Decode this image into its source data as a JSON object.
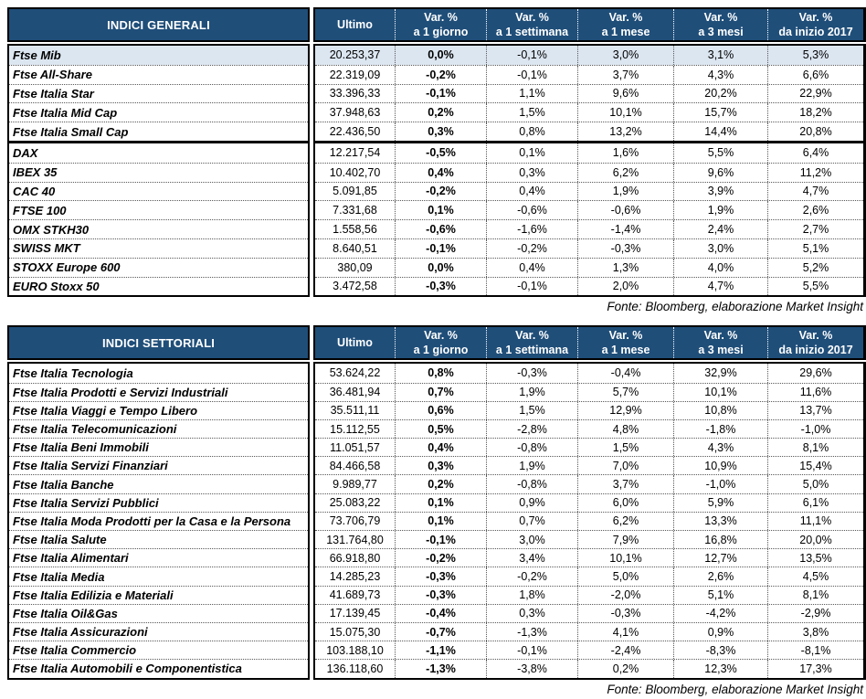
{
  "colors": {
    "header_bg": "#1F4E79",
    "header_text": "#FFFFFF",
    "highlight_bg": "#DCE6F1"
  },
  "tables": [
    {
      "title": "INDICI GENERALI",
      "columns": {
        "ultimo": "Ultimo",
        "var": "Var. %",
        "periods": [
          "a 1 giorno",
          "a 1 settimana",
          "a 1 mese",
          "a 3 mesi",
          "da inizio 2017"
        ]
      },
      "groups": [
        {
          "rows": [
            {
              "name": "Ftse Mib",
              "ultimo": "20.253,37",
              "vars": [
                "0,0%",
                "-0,1%",
                "3,0%",
                "3,1%",
                "5,3%"
              ],
              "highlight": true
            },
            {
              "name": "Ftse All-Share",
              "ultimo": "22.319,09",
              "vars": [
                "-0,2%",
                "-0,1%",
                "3,7%",
                "4,3%",
                "6,6%"
              ]
            },
            {
              "name": "Ftse Italia Star",
              "ultimo": "33.396,33",
              "vars": [
                "-0,1%",
                "1,1%",
                "9,6%",
                "20,2%",
                "22,9%"
              ]
            },
            {
              "name": "Ftse Italia Mid Cap",
              "ultimo": "37.948,63",
              "vars": [
                "0,2%",
                "1,5%",
                "10,1%",
                "15,7%",
                "18,2%"
              ]
            },
            {
              "name": "Ftse Italia Small Cap",
              "ultimo": "22.436,50",
              "vars": [
                "0,3%",
                "0,8%",
                "13,2%",
                "14,4%",
                "20,8%"
              ]
            }
          ]
        },
        {
          "rows": [
            {
              "name": "DAX",
              "ultimo": "12.217,54",
              "vars": [
                "-0,5%",
                "0,1%",
                "1,6%",
                "5,5%",
                "6,4%"
              ]
            },
            {
              "name": "IBEX 35",
              "ultimo": "10.402,70",
              "vars": [
                "0,4%",
                "0,3%",
                "6,2%",
                "9,6%",
                "11,2%"
              ]
            },
            {
              "name": "CAC 40",
              "ultimo": "5.091,85",
              "vars": [
                "-0,2%",
                "0,4%",
                "1,9%",
                "3,9%",
                "4,7%"
              ]
            },
            {
              "name": "FTSE 100",
              "ultimo": "7.331,68",
              "vars": [
                "0,1%",
                "-0,6%",
                "-0,6%",
                "1,9%",
                "2,6%"
              ]
            },
            {
              "name": "OMX STKH30",
              "ultimo": "1.558,56",
              "vars": [
                "-0,6%",
                "-1,6%",
                "-1,4%",
                "2,4%",
                "2,7%"
              ]
            },
            {
              "name": "SWISS MKT",
              "ultimo": "8.640,51",
              "vars": [
                "-0,1%",
                "-0,2%",
                "-0,3%",
                "3,0%",
                "5,1%"
              ]
            },
            {
              "name": "STOXX Europe 600",
              "ultimo": "380,09",
              "vars": [
                "0,0%",
                "0,4%",
                "1,3%",
                "4,0%",
                "5,2%"
              ]
            },
            {
              "name": "EURO Stoxx 50",
              "ultimo": "3.472,58",
              "vars": [
                "-0,3%",
                "-0,1%",
                "2,0%",
                "4,7%",
                "5,5%"
              ]
            }
          ]
        }
      ],
      "source": "Fonte: Bloomberg, elaborazione Market Insight"
    },
    {
      "title": "INDICI SETTORIALI",
      "columns": {
        "ultimo": "Ultimo",
        "var": "Var. %",
        "periods": [
          "a 1 giorno",
          "a 1 settimana",
          "a 1 mese",
          "a 3 mesi",
          "da inizio 2017"
        ]
      },
      "groups": [
        {
          "rows": [
            {
              "name": "Ftse Italia Tecnologia",
              "ultimo": "53.624,22",
              "vars": [
                "0,8%",
                "-0,3%",
                "-0,4%",
                "32,9%",
                "29,6%"
              ]
            },
            {
              "name": "Ftse Italia Prodotti e Servizi Industriali",
              "ultimo": "36.481,94",
              "vars": [
                "0,7%",
                "1,9%",
                "5,7%",
                "10,1%",
                "11,6%"
              ]
            },
            {
              "name": "Ftse Italia Viaggi e Tempo Libero",
              "ultimo": "35.511,11",
              "vars": [
                "0,6%",
                "1,5%",
                "12,9%",
                "10,8%",
                "13,7%"
              ]
            },
            {
              "name": "Ftse Italia Telecomunicazioni",
              "ultimo": "15.112,55",
              "vars": [
                "0,5%",
                "-2,8%",
                "4,8%",
                "-1,8%",
                "-1,0%"
              ]
            },
            {
              "name": "Ftse Italia Beni Immobili",
              "ultimo": "11.051,57",
              "vars": [
                "0,4%",
                "-0,8%",
                "1,5%",
                "4,3%",
                "8,1%"
              ]
            },
            {
              "name": "Ftse Italia Servizi Finanziari",
              "ultimo": "84.466,58",
              "vars": [
                "0,3%",
                "1,9%",
                "7,0%",
                "10,9%",
                "15,4%"
              ]
            },
            {
              "name": "Ftse Italia Banche",
              "ultimo": "9.989,77",
              "vars": [
                "0,2%",
                "-0,8%",
                "3,7%",
                "-1,0%",
                "5,0%"
              ]
            },
            {
              "name": "Ftse Italia Servizi Pubblici",
              "ultimo": "25.083,22",
              "vars": [
                "0,1%",
                "0,9%",
                "6,0%",
                "5,9%",
                "6,1%"
              ]
            },
            {
              "name": "Ftse Italia Moda Prodotti per la Casa e la Persona",
              "ultimo": "73.706,79",
              "vars": [
                "0,1%",
                "0,7%",
                "6,2%",
                "13,3%",
                "11,1%"
              ]
            },
            {
              "name": "Ftse Italia Salute",
              "ultimo": "131.764,80",
              "vars": [
                "-0,1%",
                "3,0%",
                "7,9%",
                "16,8%",
                "20,0%"
              ]
            },
            {
              "name": "Ftse Italia Alimentari",
              "ultimo": "66.918,80",
              "vars": [
                "-0,2%",
                "3,4%",
                "10,1%",
                "12,7%",
                "13,5%"
              ]
            },
            {
              "name": "Ftse Italia Media",
              "ultimo": "14.285,23",
              "vars": [
                "-0,3%",
                "-0,2%",
                "5,0%",
                "2,6%",
                "4,5%"
              ]
            },
            {
              "name": "Ftse Italia Edilizia e Materiali",
              "ultimo": "41.689,73",
              "vars": [
                "-0,3%",
                "1,8%",
                "-2,0%",
                "5,1%",
                "8,1%"
              ]
            },
            {
              "name": "Ftse Italia Oil&Gas",
              "ultimo": "17.139,45",
              "vars": [
                "-0,4%",
                "0,3%",
                "-0,3%",
                "-4,2%",
                "-2,9%"
              ]
            },
            {
              "name": "Ftse Italia Assicurazioni",
              "ultimo": "15.075,30",
              "vars": [
                "-0,7%",
                "-1,3%",
                "4,1%",
                "0,9%",
                "3,8%"
              ]
            },
            {
              "name": "Ftse Italia Commercio",
              "ultimo": "103.188,10",
              "vars": [
                "-1,1%",
                "-0,1%",
                "-2,4%",
                "-8,3%",
                "-8,1%"
              ]
            },
            {
              "name": "Ftse Italia Automobili e Componentistica",
              "ultimo": "136.118,60",
              "vars": [
                "-1,3%",
                "-3,8%",
                "0,2%",
                "12,3%",
                "17,3%"
              ]
            }
          ]
        }
      ],
      "source": "Fonte: Bloomberg, elaborazione Market Insight"
    }
  ]
}
